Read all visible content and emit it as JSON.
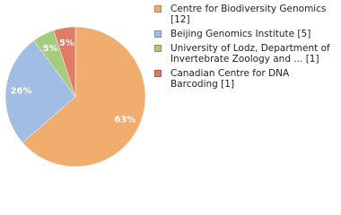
{
  "chart_data": {
    "type": "pie",
    "categories": [
      "Centre for Biodiversity Genomics [12]",
      "Beijing Genomics Institute [5]",
      "University of Lodz, Department of Invertebrate Zoology and ... [1]",
      "Canadian Centre for DNA Barcoding [1]"
    ],
    "values": [
      63,
      26,
      5,
      5
    ],
    "value_labels": [
      "63%",
      "26%",
      "5%",
      "5%"
    ],
    "colors": [
      "#f0ad6e",
      "#a1bde4",
      "#a5cc7a",
      "#e07b65"
    ],
    "legend": "right"
  }
}
